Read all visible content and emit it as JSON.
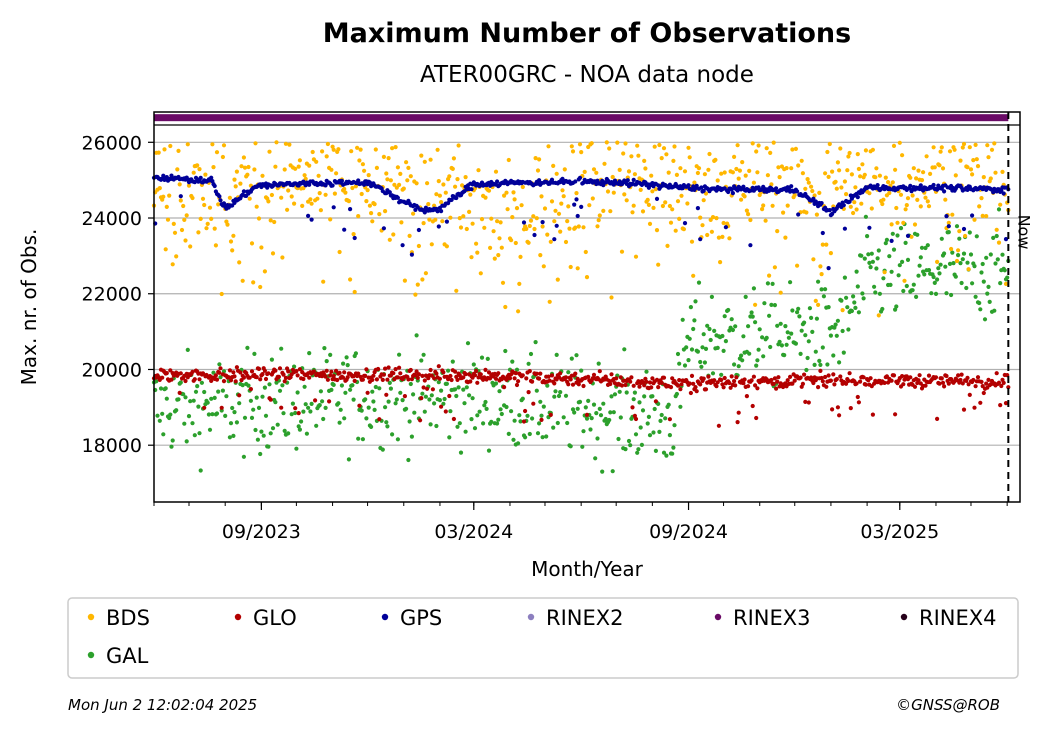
{
  "chart_data": {
    "type": "scatter",
    "title": "Maximum Number of Observations",
    "subtitle": "ATER00GRC - NOA data node",
    "xlabel": "Month/Year",
    "ylabel": "Max. nr. of Obs.",
    "x_start": "2023-06-01",
    "x_end": "2025-06-12",
    "ylim": [
      16500,
      26800
    ],
    "y_ticks": [
      18000,
      20000,
      22000,
      24000,
      26000
    ],
    "y_tick_labels": [
      "18000",
      "20000",
      "22000",
      "24000",
      "26000"
    ],
    "x_ticks": [
      "2023-09-01",
      "2024-03-01",
      "2024-09-01",
      "2025-03-01"
    ],
    "x_tick_labels": [
      "09/2023",
      "03/2024",
      "09/2024",
      "03/2025"
    ],
    "grid": "horizontal",
    "now_marker": {
      "date": "2025-06-02",
      "label": "Now"
    },
    "legend_placement": "bottom",
    "series": [
      {
        "name": "BDS",
        "color": "#ffb700",
        "dates": [
          "2023-06-01",
          "2023-08-01",
          "2023-10-01",
          "2023-12-01",
          "2024-02-01",
          "2024-04-01",
          "2024-06-01",
          "2024-08-01",
          "2024-10-01",
          "2024-12-01",
          "2025-02-01",
          "2025-04-01",
          "2025-06-02"
        ],
        "values": [
          25000,
          24800,
          25000,
          24900,
          24700,
          24000,
          25000,
          24900,
          24800,
          24900,
          24900,
          25100,
          24900
        ]
      },
      {
        "name": "GLO",
        "color": "#b30000",
        "dates": [
          "2023-06-01",
          "2023-09-01",
          "2023-12-01",
          "2024-03-01",
          "2024-06-01",
          "2024-08-01",
          "2024-09-01",
          "2024-12-01",
          "2025-03-01",
          "2025-06-02"
        ],
        "values": [
          19850,
          19850,
          19850,
          19850,
          19750,
          19650,
          19650,
          19700,
          19700,
          19700
        ]
      },
      {
        "name": "GPS",
        "color": "#000099",
        "dates": [
          "2023-06-01",
          "2023-07-20",
          "2023-08-01",
          "2023-08-28",
          "2023-10-01",
          "2023-12-01",
          "2024-01-15",
          "2024-02-01",
          "2024-03-01",
          "2024-05-01",
          "2024-06-01",
          "2024-07-01",
          "2024-09-01",
          "2024-10-01",
          "2024-12-01",
          "2025-01-01",
          "2025-02-01",
          "2025-03-01",
          "2025-04-01",
          "2025-06-02"
        ],
        "values": [
          25050,
          25000,
          24250,
          24850,
          24900,
          24950,
          24200,
          24250,
          24900,
          24950,
          24950,
          24950,
          24800,
          24750,
          24750,
          24150,
          24800,
          24800,
          24800,
          24750
        ]
      },
      {
        "name": "RINEX2",
        "color": "#8c7fbf",
        "dates": [],
        "values": []
      },
      {
        "name": "RINEX3",
        "color": "#6a0a66",
        "dates": [
          "2023-06-01",
          "2025-06-02"
        ],
        "values": [
          26650,
          26650
        ]
      },
      {
        "name": "RINEX4",
        "color": "#26001a",
        "dates": [],
        "values": []
      },
      {
        "name": "GAL",
        "color": "#2ca02c",
        "dates": [
          "2023-06-01",
          "2023-09-01",
          "2023-12-01",
          "2024-03-01",
          "2024-06-01",
          "2024-08-20",
          "2024-09-01",
          "2024-12-01",
          "2025-01-10",
          "2025-02-01",
          "2025-04-01",
          "2025-06-02"
        ],
        "values": [
          19000,
          19100,
          19300,
          19300,
          19000,
          18700,
          20800,
          20900,
          21000,
          22500,
          22600,
          22600
        ]
      }
    ]
  },
  "footer": {
    "timestamp": "Mon Jun  2 12:02:04 2025",
    "credit": "©GNSS@ROB"
  }
}
